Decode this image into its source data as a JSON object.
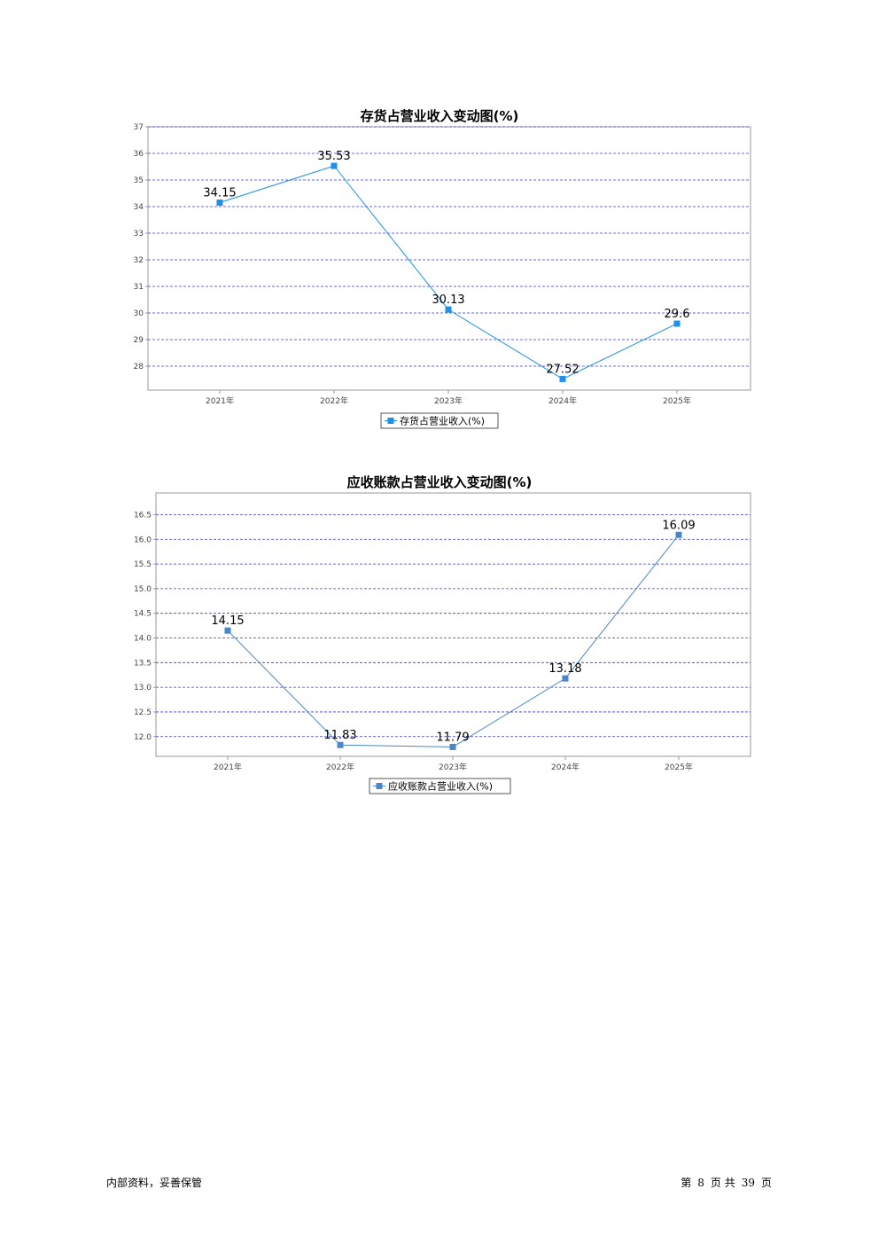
{
  "chart_data": [
    {
      "type": "line",
      "title": "存货占营业收入变动图(%)",
      "categories": [
        "2021年",
        "2022年",
        "2023年",
        "2024年",
        "2025年"
      ],
      "series": [
        {
          "name": "存货占营业收入(%)",
          "values": [
            34.15,
            35.53,
            30.13,
            27.52,
            29.6
          ],
          "color": "#1e90e8"
        }
      ],
      "y_ticks": [
        "37",
        "36",
        "35",
        "34",
        "33",
        "32",
        "31",
        "30",
        "29",
        "28"
      ],
      "ylim": [
        27.1,
        37.0
      ],
      "grid": true,
      "legend": "bottom"
    },
    {
      "type": "line",
      "title": "应收账款占营业收入变动图(%)",
      "categories": [
        "2021年",
        "2022年",
        "2023年",
        "2024年",
        "2025年"
      ],
      "series": [
        {
          "name": "应收账款占营业收入(%)",
          "values": [
            14.15,
            11.83,
            11.79,
            13.18,
            16.09
          ],
          "color": "#4a86c8"
        }
      ],
      "y_ticks": [
        "16.5",
        "16.0",
        "15.5",
        "15.0",
        "14.5",
        "14.0",
        "13.5",
        "13.0",
        "12.5",
        "12.0"
      ],
      "ylim": [
        11.6,
        16.94
      ],
      "grid": true,
      "legend": "bottom"
    }
  ],
  "footer": {
    "left": "内部资料，妥善保管",
    "page_prefix": "第",
    "page_current": "8",
    "page_mid": "页  共",
    "page_total": "39",
    "page_suffix": "页"
  }
}
